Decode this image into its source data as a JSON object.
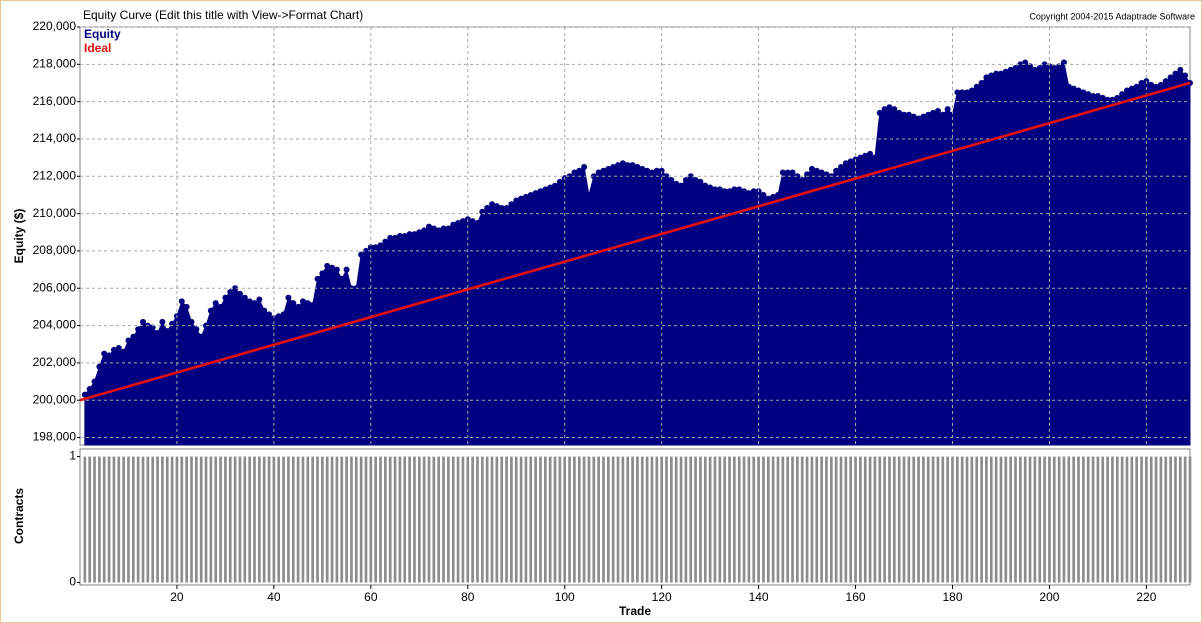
{
  "chart_data": {
    "type": "area",
    "title": "Equity Curve (Edit this title with View->Format Chart)",
    "annotation": "Copyright 2004-2015 Adaptrade Software",
    "ylabel": "Equity ($)",
    "xlabel": "Trade",
    "grid": true,
    "xlim": [
      0,
      229
    ],
    "xticks": [
      20,
      40,
      60,
      80,
      100,
      120,
      140,
      160,
      180,
      200,
      220
    ],
    "ylim": [
      197600,
      220000
    ],
    "yticks": [
      {
        "value": 198000,
        "label": "198,000"
      },
      {
        "value": 200000,
        "label": "200,000"
      },
      {
        "value": 202000,
        "label": "202,000"
      },
      {
        "value": 204000,
        "label": "204,000"
      },
      {
        "value": 206000,
        "label": "206,000"
      },
      {
        "value": 208000,
        "label": "208,000"
      },
      {
        "value": 210000,
        "label": "210,000"
      },
      {
        "value": 212000,
        "label": "212,000"
      },
      {
        "value": 214000,
        "label": "214,000"
      },
      {
        "value": 216000,
        "label": "216,000"
      },
      {
        "value": 218000,
        "label": "218,000"
      },
      {
        "value": 220000,
        "label": "220,000"
      }
    ],
    "x": [
      1,
      2,
      3,
      4,
      5,
      6,
      7,
      8,
      9,
      10,
      11,
      12,
      13,
      14,
      15,
      16,
      17,
      18,
      19,
      20,
      21,
      22,
      23,
      24,
      25,
      26,
      27,
      28,
      29,
      30,
      31,
      32,
      33,
      34,
      35,
      36,
      37,
      38,
      39,
      40,
      41,
      42,
      43,
      44,
      45,
      46,
      47,
      48,
      49,
      50,
      51,
      52,
      53,
      54,
      55,
      56,
      57,
      58,
      59,
      60,
      61,
      62,
      63,
      64,
      65,
      66,
      67,
      68,
      69,
      70,
      71,
      72,
      73,
      74,
      75,
      76,
      77,
      78,
      79,
      80,
      81,
      82,
      83,
      84,
      85,
      86,
      87,
      88,
      89,
      90,
      91,
      92,
      93,
      94,
      95,
      96,
      97,
      98,
      99,
      100,
      101,
      102,
      103,
      104,
      105,
      106,
      107,
      108,
      109,
      110,
      111,
      112,
      113,
      114,
      115,
      116,
      117,
      118,
      119,
      120,
      121,
      122,
      123,
      124,
      125,
      126,
      127,
      128,
      129,
      130,
      131,
      132,
      133,
      134,
      135,
      136,
      137,
      138,
      139,
      140,
      141,
      142,
      143,
      144,
      145,
      146,
      147,
      148,
      149,
      150,
      151,
      152,
      153,
      154,
      155,
      156,
      157,
      158,
      159,
      160,
      161,
      162,
      163,
      164,
      165,
      166,
      167,
      168,
      169,
      170,
      171,
      172,
      173,
      174,
      175,
      176,
      177,
      178,
      179,
      180,
      181,
      182,
      183,
      184,
      185,
      186,
      187,
      188,
      189,
      190,
      191,
      192,
      193,
      194,
      195,
      196,
      197,
      198,
      199,
      200,
      201,
      202,
      203,
      204,
      205,
      206,
      207,
      208,
      209,
      210,
      211,
      212,
      213,
      214,
      215,
      216,
      217,
      218,
      219,
      220,
      221,
      222,
      223,
      224,
      225,
      226,
      227,
      228,
      229
    ],
    "series": [
      {
        "name": "Equity",
        "color": "#000080",
        "values": [
          200300,
          200600,
          201000,
          201800,
          202500,
          202400,
          202700,
          202800,
          202600,
          203200,
          203400,
          203800,
          204200,
          204000,
          203900,
          203600,
          204200,
          203700,
          204100,
          204500,
          205300,
          205000,
          204200,
          203800,
          203400,
          204000,
          204800,
          205200,
          205000,
          205500,
          205800,
          206000,
          205700,
          205500,
          205300,
          205200,
          205400,
          204800,
          204600,
          204400,
          204500,
          204600,
          205500,
          205200,
          205000,
          205300,
          205200,
          205100,
          206500,
          206800,
          207200,
          207100,
          207000,
          206500,
          207000,
          206000,
          206000,
          207800,
          208000,
          208200,
          208200,
          208300,
          208500,
          208700,
          208700,
          208800,
          208800,
          208900,
          208900,
          209000,
          209100,
          209300,
          209200,
          209100,
          209200,
          209200,
          209400,
          209500,
          209600,
          209700,
          209600,
          209500,
          210100,
          210300,
          210500,
          210400,
          210300,
          210300,
          210500,
          210700,
          210800,
          210900,
          211000,
          211100,
          211200,
          211300,
          211400,
          211500,
          211700,
          211900,
          212000,
          212200,
          212300,
          212500,
          211000,
          212000,
          212200,
          212300,
          212400,
          212500,
          212600,
          212700,
          212600,
          212600,
          212500,
          212400,
          212300,
          212200,
          212300,
          212300,
          212000,
          211800,
          211600,
          211500,
          211800,
          212000,
          211800,
          211700,
          211500,
          211400,
          211300,
          211300,
          211200,
          211200,
          211300,
          211300,
          211200,
          211100,
          211200,
          211200,
          211000,
          210800,
          210900,
          211000,
          212200,
          212200,
          212200,
          212000,
          211800,
          212100,
          212400,
          212300,
          212200,
          212100,
          212000,
          212300,
          212500,
          212700,
          212800,
          212900,
          213000,
          213100,
          213200,
          213000,
          215400,
          215600,
          215700,
          215600,
          215400,
          215300,
          215300,
          215200,
          215100,
          215200,
          215300,
          215400,
          215500,
          215300,
          215600,
          215300,
          216500,
          216500,
          216500,
          216600,
          216800,
          217000,
          217300,
          217400,
          217500,
          217500,
          217600,
          217700,
          217800,
          218000,
          218100,
          217900,
          217700,
          217800,
          218000,
          217900,
          217800,
          217900,
          218100,
          216800,
          216700,
          216600,
          216500,
          216400,
          216300,
          216300,
          216200,
          216100,
          216100,
          216200,
          216400,
          216600,
          216700,
          216800,
          217000,
          217100,
          216900,
          216800,
          216900,
          217100,
          217300,
          217500,
          217700,
          217400,
          217000
        ]
      },
      {
        "name": "Ideal",
        "color": "#e01010",
        "x": [
          0,
          229
        ],
        "values": [
          200000,
          217000
        ]
      }
    ],
    "contracts": {
      "type": "bar",
      "ylabel": "Contracts",
      "color": "#8c8c8c",
      "ylim": [
        -0.02,
        1.06
      ],
      "yticks": [
        0,
        1
      ],
      "values": [
        1,
        1,
        1,
        1,
        1,
        1,
        1,
        1,
        1,
        1,
        1,
        1,
        1,
        1,
        1,
        1,
        1,
        1,
        1,
        1,
        1,
        1,
        1,
        1,
        1,
        1,
        1,
        1,
        1,
        1,
        1,
        1,
        1,
        1,
        1,
        1,
        1,
        1,
        1,
        1,
        1,
        1,
        1,
        1,
        1,
        1,
        1,
        1,
        1,
        1,
        1,
        1,
        1,
        1,
        1,
        1,
        1,
        1,
        1,
        1,
        1,
        1,
        1,
        1,
        1,
        1,
        1,
        1,
        1,
        1,
        1,
        1,
        1,
        1,
        1,
        1,
        1,
        1,
        1,
        1,
        1,
        1,
        1,
        1,
        1,
        1,
        1,
        1,
        1,
        1,
        1,
        1,
        1,
        1,
        1,
        1,
        1,
        1,
        1,
        1,
        1,
        1,
        1,
        1,
        1,
        1,
        1,
        1,
        1,
        1,
        1,
        1,
        1,
        1,
        1,
        1,
        1,
        1,
        1,
        1,
        1,
        1,
        1,
        1,
        1,
        1,
        1,
        1,
        1,
        1,
        1,
        1,
        1,
        1,
        1,
        1,
        1,
        1,
        1,
        1,
        1,
        1,
        1,
        1,
        1,
        1,
        1,
        1,
        1,
        1,
        1,
        1,
        1,
        1,
        1,
        1,
        1,
        1,
        1,
        1,
        1,
        1,
        1,
        1,
        1,
        1,
        1,
        1,
        1,
        1,
        1,
        1,
        1,
        1,
        1,
        1,
        1,
        1,
        1,
        1,
        1,
        1,
        1,
        1,
        1,
        1,
        1,
        1,
        1,
        1,
        1,
        1,
        1,
        1,
        1,
        1,
        1,
        1,
        1,
        1,
        1,
        1,
        1,
        1,
        1,
        1,
        1,
        1,
        1,
        1,
        1,
        1,
        1,
        1,
        1,
        1,
        1,
        1,
        1,
        1,
        1,
        1,
        1,
        1,
        1,
        1,
        1,
        1,
        1
      ]
    }
  }
}
